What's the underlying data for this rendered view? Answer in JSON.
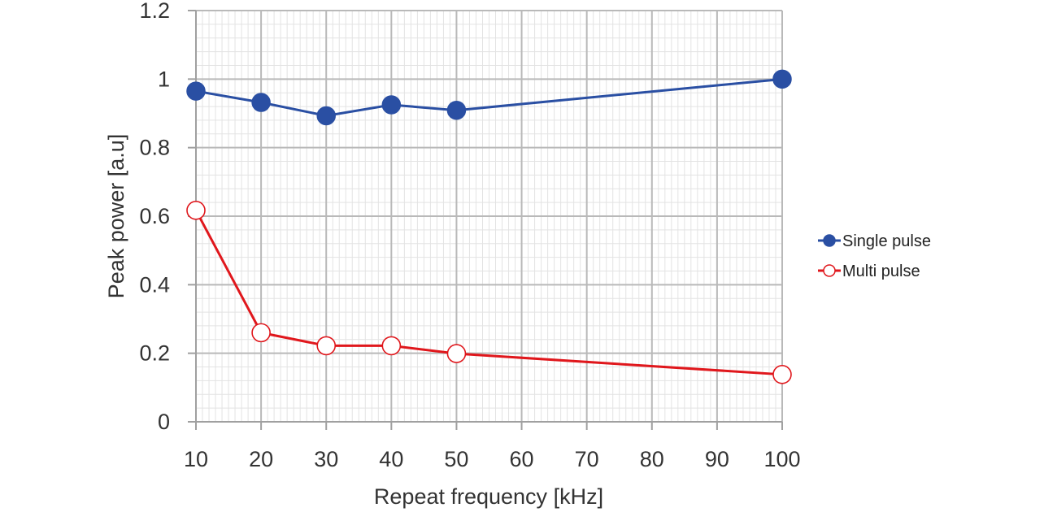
{
  "chart_data": {
    "type": "line",
    "x": [
      10,
      20,
      30,
      40,
      50,
      100
    ],
    "x_tick_labels": [
      "10",
      "20",
      "30",
      "40",
      "50",
      "60",
      "70",
      "80",
      "90",
      "100"
    ],
    "xlabel": "Repeat frequency [kHz]",
    "ylabel": "Peak power [a.u]",
    "xlim": [
      10,
      100
    ],
    "ylim": [
      0,
      1.2
    ],
    "y_tick_labels": [
      "0",
      "0.2",
      "0.4",
      "0.6",
      "0.8",
      "1",
      "1.2"
    ],
    "grid": true,
    "legend_position": "right",
    "series": [
      {
        "name": "Single pulse",
        "values": [
          0.965,
          0.932,
          0.893,
          0.925,
          0.909,
          1.0
        ],
        "color": "#2a4fa3",
        "marker": "filled-circle"
      },
      {
        "name": "Multi pulse",
        "values": [
          0.617,
          0.26,
          0.222,
          0.222,
          0.199,
          0.138
        ],
        "color": "#e0171c",
        "marker": "hollow-circle"
      }
    ]
  }
}
